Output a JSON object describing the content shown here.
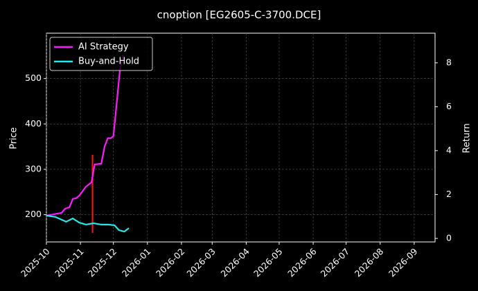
{
  "chart_data": {
    "type": "line",
    "title": "cnoption [EG2605-C-3700.DCE]",
    "ylabel": "Price",
    "y2label": "Return",
    "xlim": [
      "2025-10-01",
      "2026-09-20"
    ],
    "xticks": [
      {
        "value": "2025-10-01",
        "label": "2025-10"
      },
      {
        "value": "2025-11-01",
        "label": "2025-11"
      },
      {
        "value": "2025-12-01",
        "label": "2025-12"
      },
      {
        "value": "2026-01-01",
        "label": "2026-01"
      },
      {
        "value": "2026-02-01",
        "label": "2026-02"
      },
      {
        "value": "2026-03-01",
        "label": "2026-03"
      },
      {
        "value": "2026-04-01",
        "label": "2026-04"
      },
      {
        "value": "2026-05-01",
        "label": "2026-05"
      },
      {
        "value": "2026-06-01",
        "label": "2026-06"
      },
      {
        "value": "2026-07-01",
        "label": "2026-07"
      },
      {
        "value": "2026-08-01",
        "label": "2026-08"
      },
      {
        "value": "2026-09-01",
        "label": "2026-09"
      }
    ],
    "ylim": [
      140,
      600
    ],
    "yticks": [
      200,
      300,
      400,
      500
    ],
    "y2lim": [
      -0.16,
      9.35
    ],
    "y2ticks": [
      0,
      2,
      4,
      6,
      8
    ],
    "grid": true,
    "legend": "upper left",
    "price_range": {
      "x": "2025-11-12",
      "low": 160,
      "high": 332,
      "color": "#ff1a1a"
    },
    "series": [
      {
        "name": "AI Strategy",
        "color": "#ff1aff",
        "axis": "y2",
        "x": [
          "2025-10-01",
          "2025-10-15",
          "2025-10-18",
          "2025-10-22",
          "2025-10-25",
          "2025-10-28",
          "2025-10-31",
          "2025-11-06",
          "2025-11-11",
          "2025-11-14",
          "2025-11-20",
          "2025-11-23",
          "2025-11-26",
          "2025-11-29",
          "2025-12-01",
          "2025-12-04",
          "2025-12-07",
          "2025-12-10"
        ],
        "values": [
          1.04,
          1.17,
          1.35,
          1.42,
          1.8,
          1.83,
          1.95,
          2.36,
          2.55,
          3.37,
          3.4,
          4.19,
          4.57,
          4.57,
          4.66,
          6.14,
          7.7,
          8.35
        ]
      },
      {
        "name": "Buy-and-Hold",
        "color": "#26e8e8",
        "axis": "y2",
        "x": [
          "2025-10-01",
          "2025-10-09",
          "2025-10-15",
          "2025-10-19",
          "2025-10-25",
          "2025-10-31",
          "2025-11-06",
          "2025-11-13",
          "2025-11-20",
          "2025-11-26",
          "2025-12-02",
          "2025-12-06",
          "2025-12-11",
          "2025-12-15"
        ],
        "values": [
          1.04,
          0.98,
          0.85,
          0.76,
          0.91,
          0.72,
          0.63,
          0.69,
          0.63,
          0.63,
          0.6,
          0.38,
          0.31,
          0.47
        ]
      }
    ]
  }
}
